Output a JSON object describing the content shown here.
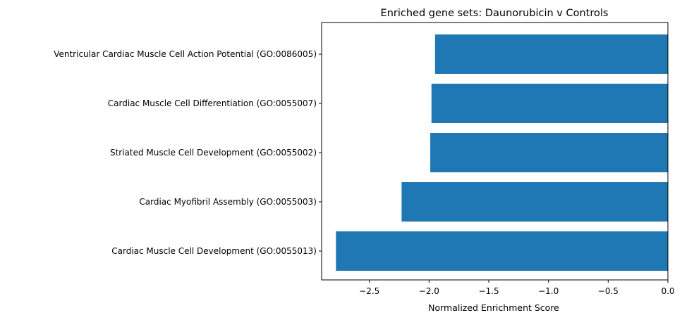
{
  "chart_data": {
    "type": "bar",
    "orientation": "horizontal",
    "title": "Enriched gene sets: Daunorubicin v Controls",
    "xlabel": "Normalized Enrichment Score",
    "ylabel": "",
    "xlim": [
      -2.9,
      0.0
    ],
    "xticks": [
      -2.5,
      -2.0,
      -1.5,
      -1.0,
      -0.5,
      0.0
    ],
    "xtick_labels": [
      "−2.5",
      "−2.0",
      "−1.5",
      "−1.0",
      "−0.5",
      "0.0"
    ],
    "categories": [
      "Cardiac Muscle Cell Development (GO:0055013)",
      "Cardiac Myofibril Assembly (GO:0055003)",
      "Striated Muscle Cell Development (GO:0055002)",
      "Cardiac Muscle Cell Differentiation (GO:0055007)",
      "Ventricular Cardiac Muscle Cell Action Potential (GO:0086005)"
    ],
    "values": [
      -2.78,
      -2.23,
      -1.99,
      -1.98,
      -1.95
    ],
    "bar_color": "#1f77b4",
    "grid": false,
    "legend": "none"
  }
}
